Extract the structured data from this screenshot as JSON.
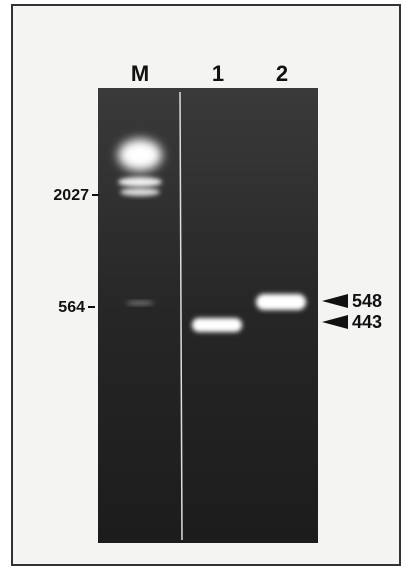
{
  "lanes": [
    "M",
    "1",
    "2"
  ],
  "markers": [
    "2027",
    "564"
  ],
  "band_labels": [
    "548",
    "443"
  ]
}
